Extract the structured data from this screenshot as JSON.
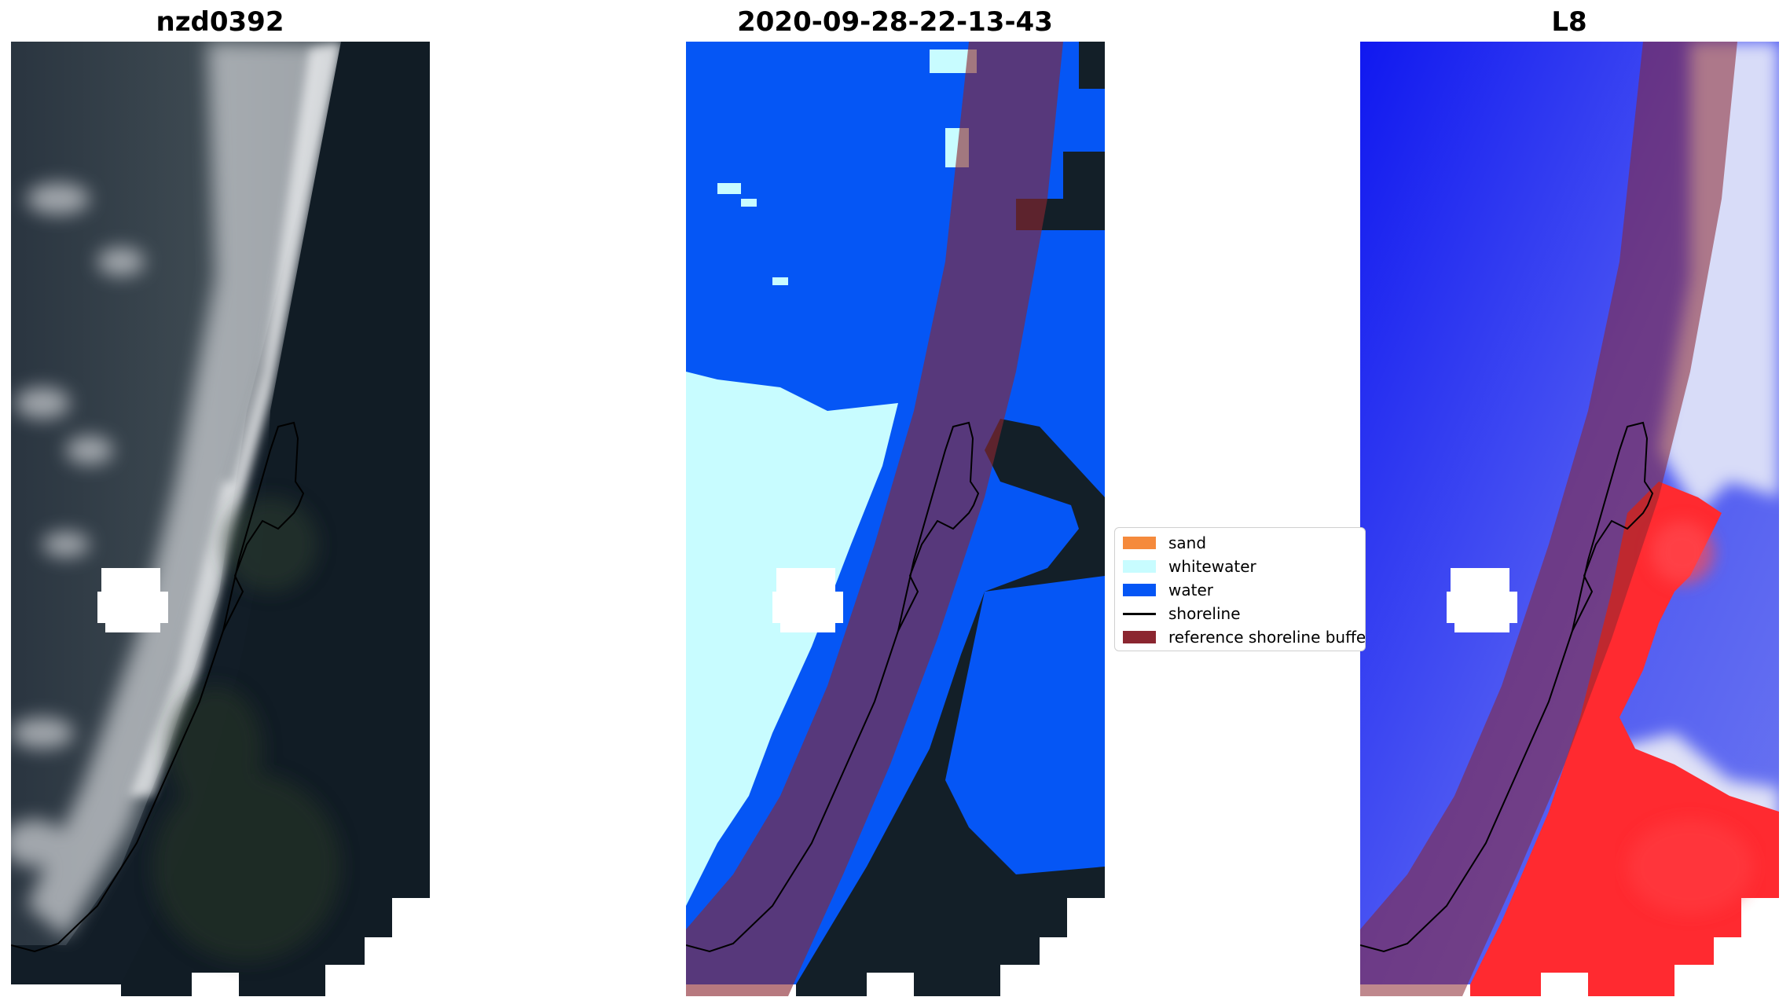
{
  "panels": {
    "rgb": {
      "title": "nzd0392"
    },
    "classified": {
      "title": "2020-09-28-22-13-43"
    },
    "index": {
      "title": "L8"
    }
  },
  "legend": {
    "items": [
      {
        "label": "sand",
        "kind": "patch",
        "color": "#f58a3c"
      },
      {
        "label": "whitewater",
        "kind": "patch",
        "color": "#c8fcff"
      },
      {
        "label": "water",
        "kind": "patch",
        "color": "#0556f5"
      },
      {
        "label": "shoreline",
        "kind": "line",
        "color": "#000000"
      },
      {
        "label": "reference shoreline buffer",
        "kind": "patch",
        "color": "#8b2630"
      }
    ]
  },
  "colors": {
    "land_dark": "#101c26",
    "water_class": "#0556f5",
    "whitewater_class": "#c8fcff",
    "buffer": "#8b2630",
    "index_water": "#1e2cf0",
    "index_land": "#ff1e2a"
  }
}
